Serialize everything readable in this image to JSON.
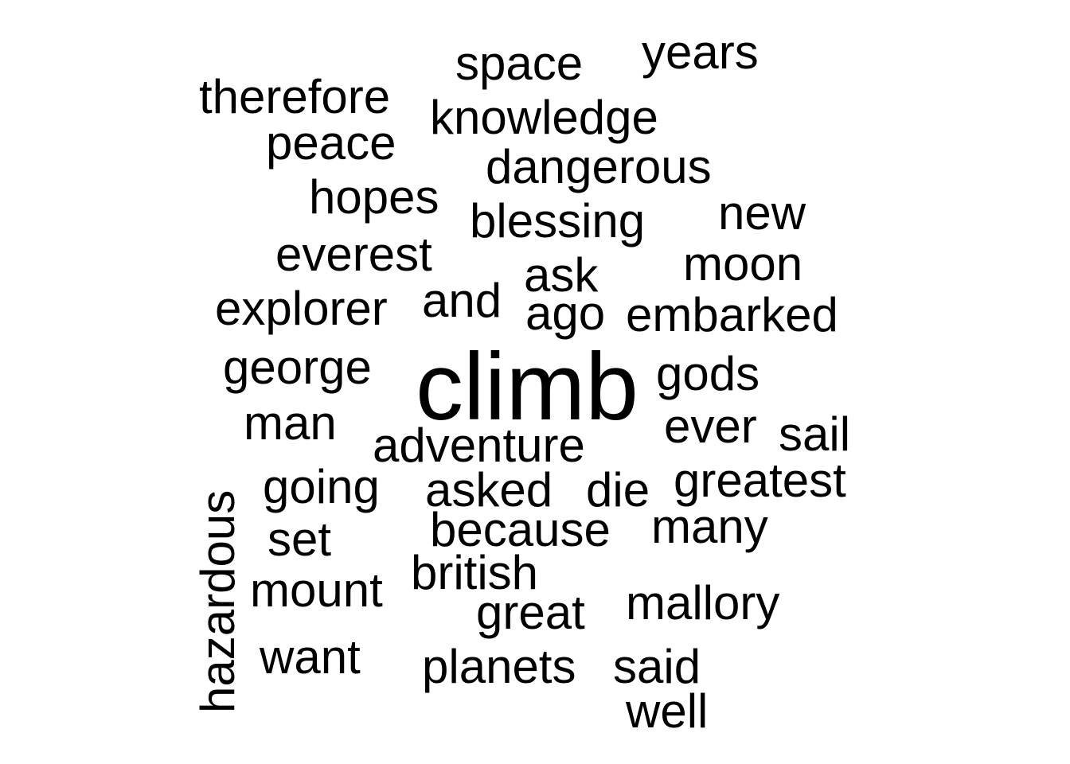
{
  "word_cloud": {
    "text_color": "#000000",
    "background": "#ffffff",
    "words": {
      "years": "years",
      "space": "space",
      "therefore": "therefore",
      "knowledge": "knowledge",
      "peace": "peace",
      "dangerous": "dangerous",
      "hopes": "hopes",
      "new": "new",
      "blessing": "blessing",
      "everest": "everest",
      "moon": "moon",
      "ask": "ask",
      "explorer": "explorer",
      "and": "and",
      "ago": "ago",
      "embarked": "embarked",
      "george": "george",
      "climb": "climb",
      "gods": "gods",
      "man": "man",
      "ever": "ever",
      "sail": "sail",
      "adventure": "adventure",
      "hazardous": "hazardous",
      "going": "going",
      "asked": "asked",
      "die": "die",
      "greatest": "greatest",
      "because": "because",
      "many": "many",
      "set": "set",
      "british": "british",
      "mount": "mount",
      "mallory": "mallory",
      "great": "great",
      "want": "want",
      "planets": "planets",
      "said": "said",
      "well": "well"
    }
  }
}
